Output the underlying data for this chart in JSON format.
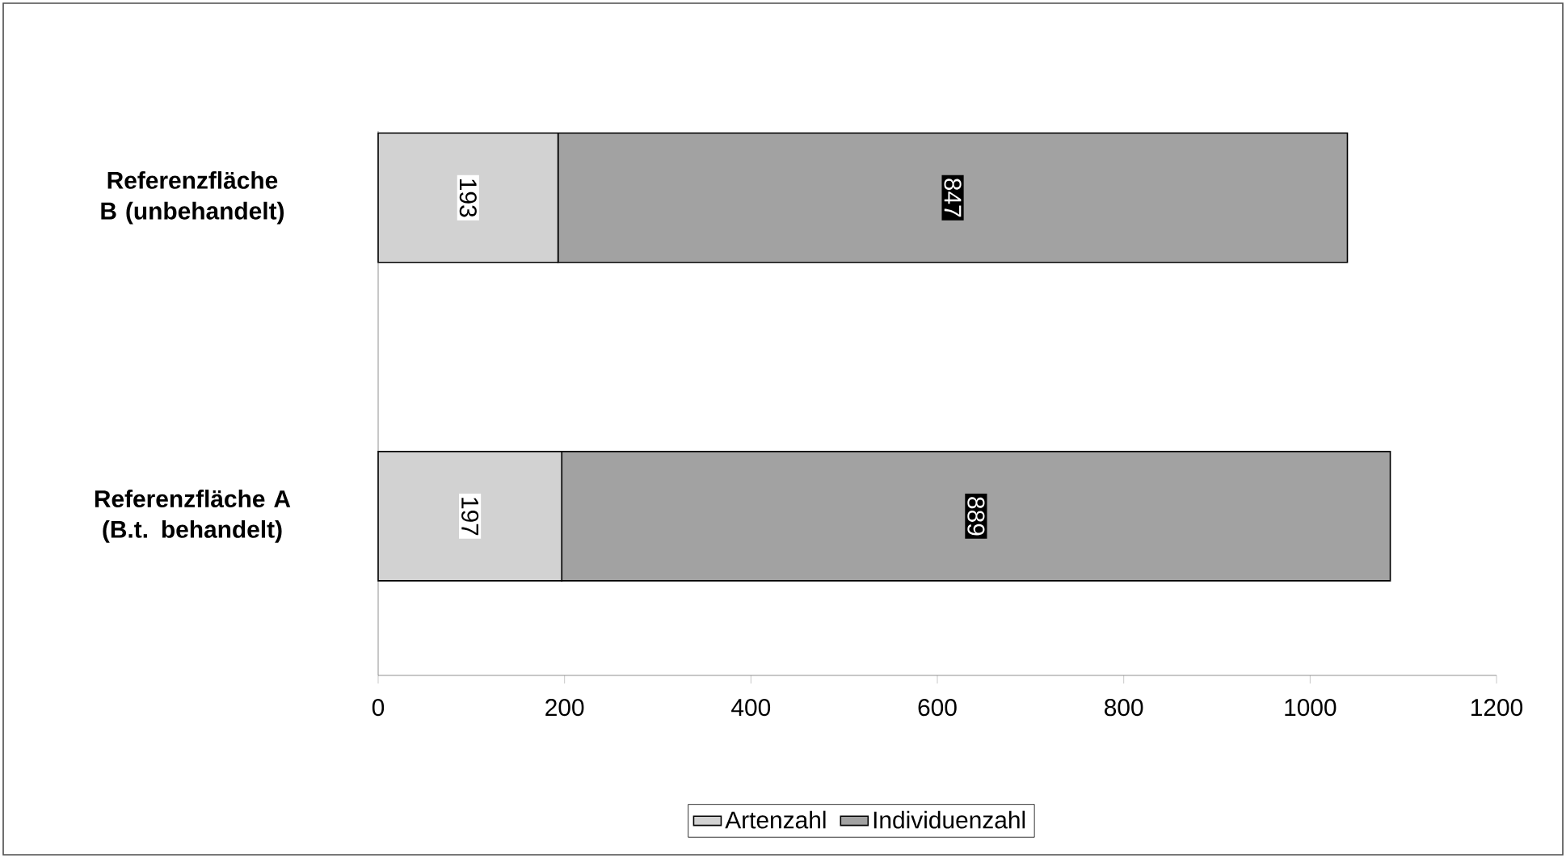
{
  "chart_data": {
    "type": "bar",
    "orientation": "horizontal",
    "stacked": true,
    "data_labels": true,
    "legend": "bottom",
    "categories": [
      "Referenzfläche B (unbehandelt)",
      "Referenzfläche A (B.t. behandelt)"
    ],
    "series": [
      {
        "name": "Artenzahl",
        "color": "#d2d2d2",
        "values": [
          193,
          197
        ]
      },
      {
        "name": "Individuenzahl",
        "color": "#a2a2a2",
        "values": [
          847,
          889
        ]
      }
    ],
    "xlim": [
      0,
      1200
    ],
    "xticks": [
      0,
      200,
      400,
      600,
      800,
      1000,
      1200
    ]
  }
}
